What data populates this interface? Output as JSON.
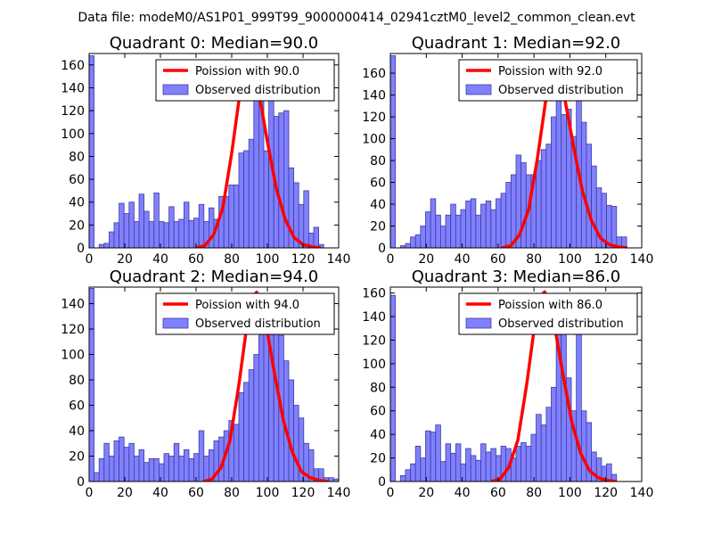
{
  "title": "Data file: modeM0/AS1P01_999T99_9000000414_02941cztM0_level2_common_clean.evt",
  "colors": {
    "bar_fill": "#8080ff",
    "bar_edge": "#3c3ca0",
    "poisson_line": "#ff0000"
  },
  "chart_data": [
    {
      "type": "bar",
      "title": "Quadrant 0: Median=90.0",
      "median": 90.0,
      "bin_width": 2.8,
      "xlim": [
        0,
        140
      ],
      "ylim": [
        0,
        170
      ],
      "xticks": [
        0,
        20,
        40,
        60,
        80,
        100,
        120,
        140
      ],
      "yticks": [
        0,
        20,
        40,
        60,
        80,
        100,
        120,
        140,
        160
      ],
      "legend": {
        "line_label": "Poission with 90.0",
        "bar_label": "Observed distribution",
        "placement": "top-right"
      },
      "x": [
        0.0,
        2.8,
        5.6,
        8.4,
        11.2,
        14.0,
        16.8,
        19.6,
        22.4,
        25.2,
        28.0,
        30.8,
        33.6,
        36.4,
        39.2,
        42.0,
        44.8,
        47.6,
        50.4,
        53.2,
        56.0,
        58.8,
        61.6,
        64.4,
        67.2,
        70.0,
        72.8,
        75.6,
        78.4,
        81.2,
        84.0,
        86.8,
        89.6,
        92.4,
        95.2,
        98.0,
        100.8,
        103.6,
        106.4,
        109.2,
        112.0,
        114.8,
        117.6,
        120.4,
        123.2,
        126.0,
        128.8
      ],
      "values": [
        168,
        0,
        3,
        4,
        14,
        22,
        39,
        30,
        40,
        23,
        47,
        32,
        23,
        48,
        23,
        22,
        36,
        23,
        25,
        40,
        24,
        26,
        38,
        23,
        35,
        25,
        45,
        45,
        55,
        55,
        83,
        85,
        95,
        158,
        130,
        85,
        162,
        115,
        118,
        120,
        70,
        57,
        38,
        50,
        13,
        18,
        3
      ],
      "poisson_line": {
        "x": [
          60,
          65,
          70,
          75,
          80,
          85,
          88,
          90,
          92,
          95,
          100,
          105,
          110,
          115,
          120,
          125,
          130
        ],
        "y": [
          0,
          2,
          12,
          35,
          83,
          140,
          160,
          163,
          155,
          138,
          93,
          52,
          25,
          9,
          3,
          1,
          0
        ]
      }
    },
    {
      "type": "bar",
      "title": "Quadrant 1: Median=92.0",
      "median": 92.0,
      "bin_width": 2.8,
      "xlim": [
        0,
        140
      ],
      "ylim": [
        0,
        178
      ],
      "xticks": [
        0,
        20,
        40,
        60,
        80,
        100,
        120,
        140
      ],
      "yticks": [
        0,
        20,
        40,
        60,
        80,
        100,
        120,
        140,
        160
      ],
      "legend": {
        "line_label": "Poission with 92.0",
        "bar_label": "Observed distribution",
        "placement": "top-right"
      },
      "x": [
        0.0,
        2.8,
        5.6,
        8.4,
        11.2,
        14.0,
        16.8,
        19.6,
        22.4,
        25.2,
        28.0,
        30.8,
        33.6,
        36.4,
        39.2,
        42.0,
        44.8,
        47.6,
        50.4,
        53.2,
        56.0,
        58.8,
        61.6,
        64.4,
        67.2,
        70.0,
        72.8,
        75.6,
        78.4,
        81.2,
        84.0,
        86.8,
        89.6,
        92.4,
        95.2,
        98.0,
        100.8,
        103.6,
        106.4,
        109.2,
        112.0,
        114.8,
        117.6,
        120.4,
        123.2,
        126.0,
        128.8
      ],
      "values": [
        176,
        0,
        2,
        4,
        10,
        12,
        20,
        33,
        45,
        30,
        20,
        30,
        40,
        30,
        35,
        43,
        45,
        30,
        40,
        43,
        35,
        45,
        50,
        60,
        67,
        85,
        78,
        67,
        67,
        80,
        90,
        95,
        120,
        170,
        122,
        127,
        102,
        140,
        115,
        95,
        75,
        55,
        50,
        39,
        38,
        10,
        10
      ],
      "poisson_line": {
        "x": [
          62,
          67,
          72,
          77,
          82,
          87,
          90,
          92,
          94,
          97,
          102,
          107,
          112,
          117,
          122,
          127,
          132
        ],
        "y": [
          0,
          2,
          12,
          35,
          83,
          140,
          160,
          163,
          155,
          138,
          93,
          52,
          25,
          9,
          3,
          1,
          0
        ]
      }
    },
    {
      "type": "bar",
      "title": "Quadrant 2: Median=94.0",
      "median": 94.0,
      "bin_width": 2.8,
      "xlim": [
        0,
        140
      ],
      "ylim": [
        0,
        153
      ],
      "xticks": [
        0,
        20,
        40,
        60,
        80,
        100,
        120,
        140
      ],
      "yticks": [
        0,
        20,
        40,
        60,
        80,
        100,
        120,
        140
      ],
      "legend": {
        "line_label": "Poission with 94.0",
        "bar_label": "Observed distribution",
        "placement": "top-right"
      },
      "x": [
        0.0,
        2.8,
        5.6,
        8.4,
        11.2,
        14.0,
        16.8,
        19.6,
        22.4,
        25.2,
        28.0,
        30.8,
        33.6,
        36.4,
        39.2,
        42.0,
        44.8,
        47.6,
        50.4,
        53.2,
        56.0,
        58.8,
        61.6,
        64.4,
        67.2,
        70.0,
        72.8,
        75.6,
        78.4,
        81.2,
        84.0,
        86.8,
        89.6,
        92.4,
        95.2,
        98.0,
        100.8,
        103.6,
        106.4,
        109.2,
        112.0,
        114.8,
        117.6,
        120.4,
        123.2,
        126.0,
        128.8,
        131.6,
        134.4,
        137.2
      ],
      "values": [
        152,
        7,
        18,
        30,
        20,
        32,
        35,
        27,
        30,
        20,
        25,
        15,
        18,
        18,
        14,
        22,
        20,
        30,
        20,
        25,
        18,
        22,
        40,
        20,
        25,
        32,
        35,
        40,
        48,
        45,
        70,
        78,
        88,
        100,
        140,
        145,
        125,
        140,
        115,
        95,
        80,
        60,
        50,
        30,
        25,
        10,
        10,
        3,
        3,
        2
      ],
      "poisson_line": {
        "x": [
          64,
          69,
          74,
          79,
          84,
          89,
          92,
          94,
          96,
          99,
          104,
          109,
          114,
          119,
          124,
          129,
          134
        ],
        "y": [
          0,
          2,
          11,
          32,
          76,
          128,
          146,
          149,
          142,
          126,
          85,
          48,
          23,
          8,
          3,
          1,
          0
        ]
      }
    },
    {
      "type": "bar",
      "title": "Quadrant 3: Median=86.0",
      "median": 86.0,
      "bin_width": 2.8,
      "xlim": [
        0,
        140
      ],
      "ylim": [
        0,
        165
      ],
      "xticks": [
        0,
        20,
        40,
        60,
        80,
        100,
        120,
        140
      ],
      "yticks": [
        0,
        20,
        40,
        60,
        80,
        100,
        120,
        140,
        160
      ],
      "legend": {
        "line_label": "Poission with 86.0",
        "bar_label": "Observed distribution",
        "placement": "top-right"
      },
      "x": [
        0.0,
        2.8,
        5.6,
        8.4,
        11.2,
        14.0,
        16.8,
        19.6,
        22.4,
        25.2,
        28.0,
        30.8,
        33.6,
        36.4,
        39.2,
        42.0,
        44.8,
        47.6,
        50.4,
        53.2,
        56.0,
        58.8,
        61.6,
        64.4,
        67.2,
        70.0,
        72.8,
        75.6,
        78.4,
        81.2,
        84.0,
        86.8,
        89.6,
        92.4,
        95.2,
        98.0,
        100.8,
        103.6,
        106.4,
        109.2,
        112.0,
        114.8,
        117.6,
        120.4,
        123.2
      ],
      "values": [
        158,
        0,
        5,
        10,
        15,
        30,
        20,
        43,
        42,
        48,
        17,
        32,
        24,
        32,
        15,
        28,
        22,
        18,
        32,
        25,
        28,
        22,
        30,
        28,
        20,
        30,
        33,
        30,
        40,
        57,
        48,
        63,
        80,
        133,
        148,
        88,
        60,
        150,
        60,
        50,
        25,
        20,
        13,
        15,
        6
      ],
      "poisson_line": {
        "x": [
          56,
          61,
          66,
          71,
          76,
          81,
          84,
          86,
          88,
          91,
          96,
          101,
          106,
          111,
          116,
          121,
          126
        ],
        "y": [
          0,
          2,
          12,
          35,
          83,
          140,
          158,
          161,
          153,
          136,
          92,
          51,
          24,
          9,
          3,
          1,
          0
        ]
      }
    }
  ]
}
